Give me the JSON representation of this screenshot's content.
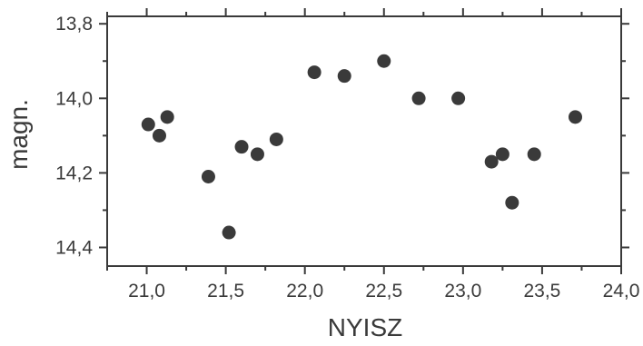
{
  "chart_data": {
    "type": "scatter",
    "xlabel": "NYISZ",
    "ylabel": "magn.",
    "xlim": [
      20.75,
      24.0
    ],
    "ylim": [
      13.78,
      14.45
    ],
    "y_inverted": true,
    "x_ticks": [
      {
        "value": 21.0,
        "label": "21,0"
      },
      {
        "value": 21.5,
        "label": "21,5"
      },
      {
        "value": 22.0,
        "label": "22,0"
      },
      {
        "value": 22.5,
        "label": "22,5"
      },
      {
        "value": 23.0,
        "label": "23,0"
      },
      {
        "value": 23.5,
        "label": "23,5"
      },
      {
        "value": 24.0,
        "label": "24,0"
      }
    ],
    "y_ticks": [
      {
        "value": 13.8,
        "label": "13,8"
      },
      {
        "value": 14.0,
        "label": "14,0"
      },
      {
        "value": 14.2,
        "label": "14,2"
      },
      {
        "value": 14.4,
        "label": "14,4"
      }
    ],
    "grid": false,
    "point_color": "#3a3a3a",
    "axis_color": "#3a3a3a",
    "points": [
      {
        "x": 21.01,
        "y": 14.07
      },
      {
        "x": 21.08,
        "y": 14.1
      },
      {
        "x": 21.13,
        "y": 14.05
      },
      {
        "x": 21.39,
        "y": 14.21
      },
      {
        "x": 21.52,
        "y": 14.36
      },
      {
        "x": 21.6,
        "y": 14.13
      },
      {
        "x": 21.7,
        "y": 14.15
      },
      {
        "x": 21.82,
        "y": 14.11
      },
      {
        "x": 22.06,
        "y": 13.93
      },
      {
        "x": 22.25,
        "y": 13.94
      },
      {
        "x": 22.5,
        "y": 13.9
      },
      {
        "x": 22.72,
        "y": 14.0
      },
      {
        "x": 22.97,
        "y": 14.0
      },
      {
        "x": 23.18,
        "y": 14.17
      },
      {
        "x": 23.25,
        "y": 14.15
      },
      {
        "x": 23.31,
        "y": 14.28
      },
      {
        "x": 23.45,
        "y": 14.15
      },
      {
        "x": 23.71,
        "y": 14.05
      }
    ]
  }
}
